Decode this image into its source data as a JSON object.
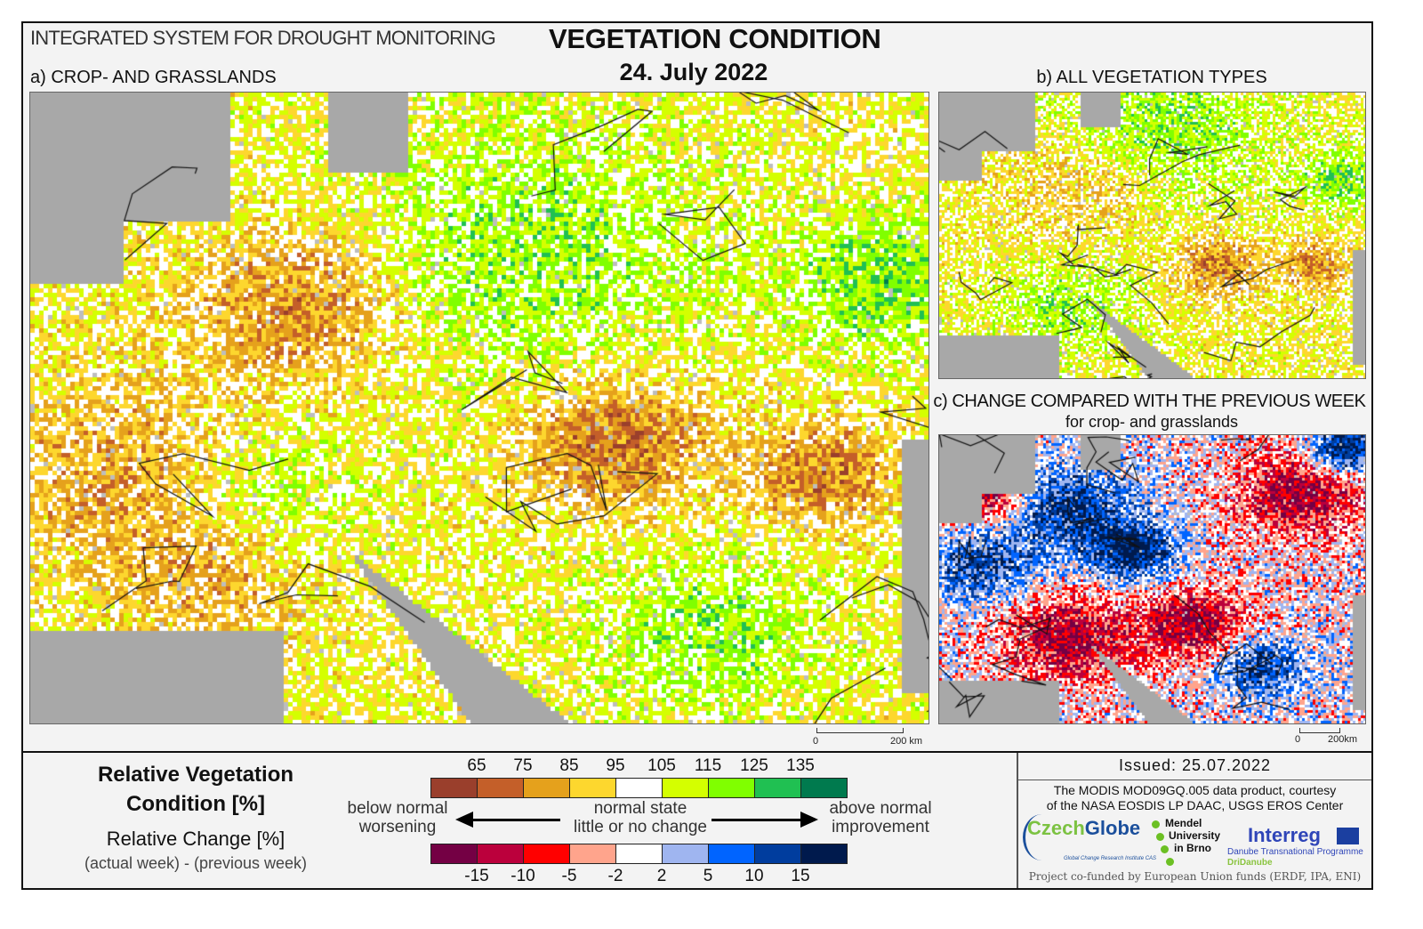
{
  "header": {
    "system": "INTEGRATED SYSTEM FOR DROUGHT MONITORING",
    "title": "VEGETATION CONDITION",
    "date": "24. July 2022"
  },
  "panels": {
    "a": "a) CROP- AND GRASSLANDS",
    "b": "b) ALL VEGETATION TYPES",
    "c": "c) CHANGE COMPARED WITH THE PREVIOUS WEEK",
    "c_sub": "for crop- and grasslands"
  },
  "scales": {
    "a": {
      "zero": "0",
      "max": "200 km"
    },
    "c": {
      "zero": "0",
      "max": "200km"
    }
  },
  "legend": {
    "title": "Relative Vegetation Condition [%]",
    "change_title": "Relative Change [%]",
    "change_sub": "(actual week) - (previous week)",
    "condition_ticks": [
      "65",
      "75",
      "85",
      "95",
      "105",
      "115",
      "125",
      "135"
    ],
    "condition_colors": [
      "#9a3f2c",
      "#c45f29",
      "#e5a11c",
      "#fdd72e",
      "#ffffff",
      "#d4ff00",
      "#80ff00",
      "#20c052",
      "#007a4e"
    ],
    "change_ticks": [
      "-15",
      "-10",
      "-5",
      "-2",
      "2",
      "5",
      "10",
      "15"
    ],
    "change_colors": [
      "#740044",
      "#bb003c",
      "#ff0000",
      "#ffa48c",
      "#ffffff",
      "#9fb5f0",
      "#0064ff",
      "#003d9e",
      "#001a4d"
    ],
    "below": "below normal",
    "worsening": "worsening",
    "normal": "normal state",
    "little": "little or no change",
    "above": "above normal",
    "improvement": "improvement"
  },
  "footer": {
    "issued": "Issued: 25.07.2022",
    "credit1": "The MODIS MOD09GQ.005 data product, courtesy",
    "credit2": "of the NASA EOSDIS LP DAAC, USGS EROS Center",
    "czechglobe_a": "Czech",
    "czechglobe_b": "Globe",
    "czechglobe_sub": "Global Change Research Institute CAS",
    "mendel": [
      "Mendel",
      "University",
      "in Brno"
    ],
    "interreg": "Interreg",
    "interreg_sub": "Danube Transnational Programme",
    "dridanube": "DriDanube",
    "funds": "Project co-funded by European Union funds (ERDF, IPA, ENI)"
  }
}
